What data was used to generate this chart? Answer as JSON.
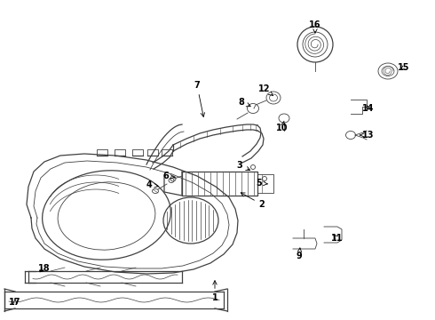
{
  "background_color": "#ffffff",
  "line_color": "#404040",
  "label_color": "#000000",
  "figsize": [
    4.9,
    3.6
  ],
  "dpi": 100
}
